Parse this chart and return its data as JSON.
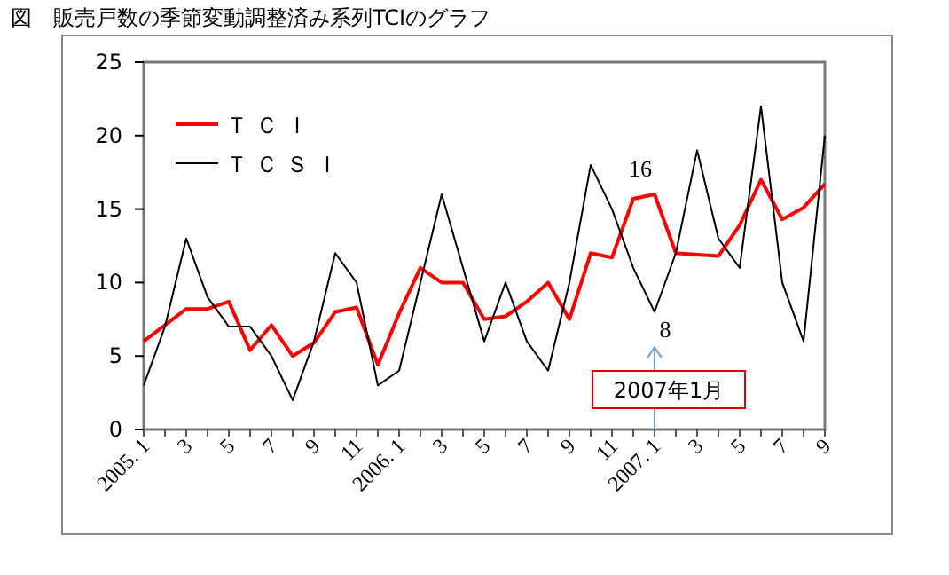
{
  "chart_data": {
    "type": "line",
    "title": "図　販売戸数の季節変動調整済み系列TCIのグラフ",
    "categories": [
      "2005. 1",
      null,
      "3",
      null,
      "5",
      null,
      "7",
      null,
      "9",
      null,
      "11",
      null,
      "2006. 1",
      null,
      "3",
      null,
      "5",
      null,
      "7",
      null,
      "9",
      null,
      "11",
      null,
      "2007. 1",
      null,
      "3",
      null,
      "5",
      null,
      "7",
      null,
      "9"
    ],
    "series": [
      {
        "name": "ＴＣＩ",
        "color": "#ff0000",
        "values": [
          6,
          7.1,
          8.2,
          8.2,
          8.7,
          5.4,
          7.1,
          5,
          5.9,
          8,
          8.3,
          4.4,
          7.9,
          11,
          10,
          10,
          7.5,
          7.7,
          8.7,
          10,
          7.5,
          12,
          11.7,
          15.7,
          16,
          12,
          11.9,
          11.8,
          13.9,
          17,
          14.3,
          15.1,
          16.7
        ]
      },
      {
        "name": "ＴＣＳＩ",
        "color": "#000000",
        "values": [
          3,
          7,
          13,
          9,
          7,
          7,
          5,
          2,
          6,
          12,
          10,
          3,
          4,
          10,
          16,
          11,
          6,
          10,
          6,
          4,
          10,
          18,
          15,
          11,
          8,
          12,
          19,
          13,
          11,
          22,
          10,
          6,
          20
        ]
      }
    ],
    "ylim": [
      0,
      25
    ],
    "yticks": [
      0,
      5,
      10,
      15,
      20,
      25
    ],
    "grid": false,
    "legend": "top left",
    "annotations": [
      {
        "text": "16",
        "x": "2007. 1",
        "y": 16
      },
      {
        "text": "8",
        "x": "2007. 1",
        "y": 8
      },
      "2007年1月"
    ]
  }
}
